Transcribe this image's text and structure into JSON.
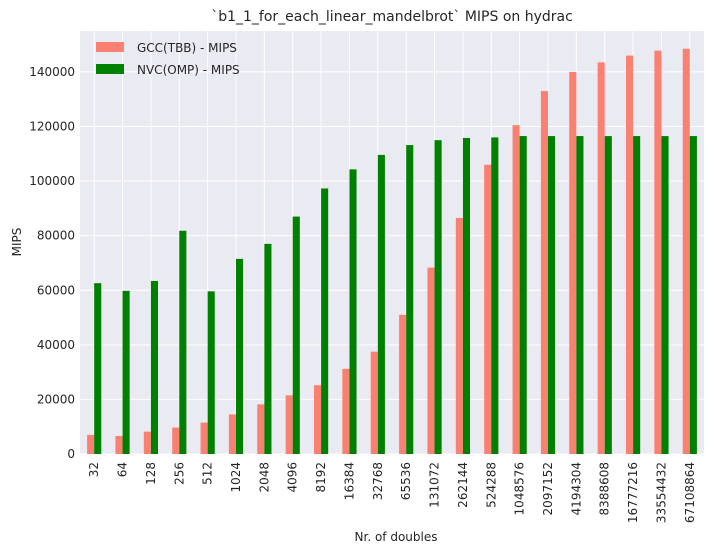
{
  "chart_data": {
    "type": "bar",
    "title": "`b1_1_for_each_linear_mandelbrot` MIPS on hydrac",
    "xlabel": "Nr. of doubles",
    "ylabel": "MIPS",
    "ylim": [
      0,
      155000
    ],
    "yticks": [
      0,
      20000,
      40000,
      60000,
      80000,
      100000,
      120000,
      140000
    ],
    "grid": true,
    "legend_position": "top-left",
    "categories": [
      "32",
      "64",
      "128",
      "256",
      "512",
      "1024",
      "2048",
      "4096",
      "8192",
      "16384",
      "32768",
      "65536",
      "131072",
      "262144",
      "524288",
      "1048576",
      "2097152",
      "4194304",
      "8388608",
      "16777216",
      "33554432",
      "67108864"
    ],
    "series": [
      {
        "name": "GCC(TBB) - MIPS",
        "color": "#fa8072",
        "values": [
          7000,
          6600,
          8200,
          9700,
          11500,
          14500,
          18200,
          21500,
          25200,
          31200,
          37500,
          51000,
          68300,
          86500,
          106000,
          120500,
          133000,
          140000,
          143500,
          146000,
          147800,
          148500
        ]
      },
      {
        "name": "NVC(OMP) - MIPS",
        "color": "#008000",
        "values": [
          62600,
          59800,
          63400,
          81800,
          59600,
          71500,
          77000,
          87000,
          97300,
          104300,
          109600,
          113200,
          115000,
          115800,
          116000,
          116500,
          116500,
          116500,
          116500,
          116500,
          116500,
          116500
        ]
      }
    ]
  }
}
